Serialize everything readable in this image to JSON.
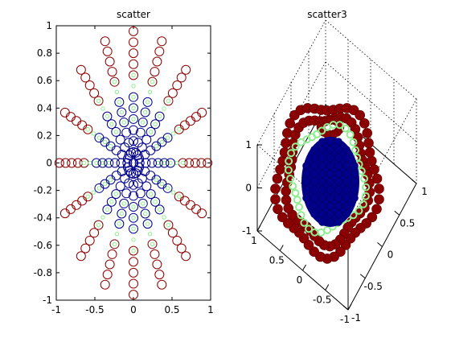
{
  "chart_data": [
    {
      "type": "scatter",
      "title": "scatter",
      "xlim": [
        -1,
        1
      ],
      "ylim": [
        -1,
        1
      ],
      "x_ticks": [
        "-1",
        "-0.5",
        "0",
        "0.5",
        "1"
      ],
      "y_ticks": [
        "1",
        "0.8",
        "0.6",
        "0.4",
        "0.2",
        "0",
        "-0.2",
        "-0.4",
        "-0.6",
        "-0.8",
        "-1"
      ],
      "grid": false,
      "marker": "open-circle",
      "pattern": {
        "angles_deg": [
          0,
          22.5,
          45,
          67.5,
          90,
          112.5,
          135,
          157.5,
          180,
          202.5,
          225,
          247.5,
          270,
          292.5,
          315,
          337.5
        ],
        "radius_step": 0.08,
        "radius_max": 0.98
      },
      "series": [
        {
          "color": "#8b0000",
          "size": "large",
          "r_range": [
            0.62,
            1.0
          ]
        },
        {
          "color": "#90ee90",
          "size": "small",
          "r_range": [
            0.3,
            0.7
          ]
        },
        {
          "color": "#00008b",
          "size": "large",
          "r_range": [
            0.0,
            0.5
          ]
        }
      ]
    },
    {
      "type": "scatter",
      "title": "scatter3",
      "x_ticks": [
        "-1",
        "-0.5",
        "0",
        "0.5",
        "1"
      ],
      "y_ticks": [
        "1",
        "0.5",
        "0",
        "-0.5",
        "-1"
      ],
      "z_ticks": [
        "1",
        "0",
        "-1"
      ],
      "marker": "filled-circle",
      "series": [
        {
          "color": "#8b0000",
          "ring_radius": 1.0
        },
        {
          "color": "#90ee90",
          "ring_radius": 0.62
        },
        {
          "color": "#00008b",
          "ring_radius": 0.45
        }
      ]
    }
  ]
}
